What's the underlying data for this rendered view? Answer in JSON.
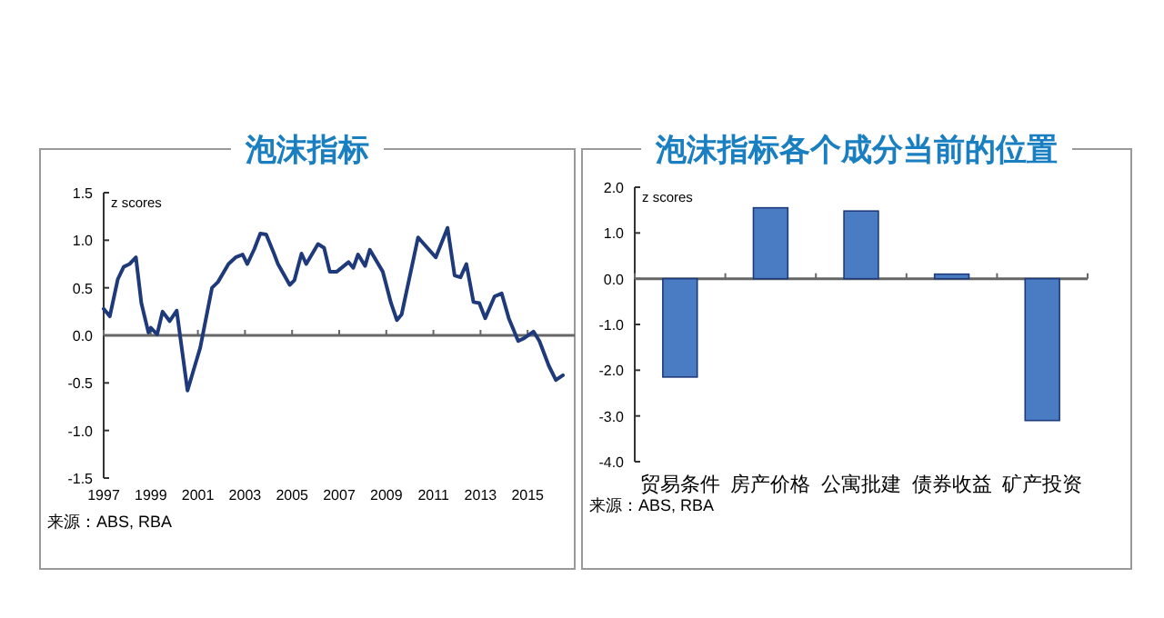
{
  "chart_data": [
    {
      "type": "line",
      "title": "泡沫指标",
      "ylabel": "z scores",
      "annotations": [
        "来源：ABS, RBA"
      ],
      "x": [
        1997.0,
        1997.26,
        1997.6,
        1997.85,
        1998.1,
        1998.37,
        1998.6,
        1998.9,
        1999.0,
        1999.27,
        1999.5,
        1999.8,
        2000.1,
        2000.56,
        2000.87,
        2001.1,
        2001.6,
        2001.85,
        2002.3,
        2002.6,
        2002.9,
        2003.1,
        2003.4,
        2003.65,
        2003.9,
        2004.2,
        2004.4,
        2004.9,
        2005.1,
        2005.4,
        2005.6,
        2006.1,
        2006.36,
        2006.6,
        2006.9,
        2007.4,
        2007.6,
        2007.8,
        2008.1,
        2008.3,
        2008.85,
        2009.2,
        2009.45,
        2009.65,
        2010.35,
        2011.1,
        2011.6,
        2011.9,
        2012.15,
        2012.4,
        2012.7,
        2012.95,
        2013.2,
        2013.6,
        2013.9,
        2014.2,
        2014.6,
        2014.85,
        2015.25,
        2015.5,
        2015.9,
        2016.2,
        2016.5
      ],
      "series": [
        {
          "color": "#1f3a7a",
          "values": [
            0.28,
            0.2,
            0.59,
            0.72,
            0.75,
            0.82,
            0.34,
            0.03,
            0.08,
            0.01,
            0.25,
            0.15,
            0.26,
            -0.58,
            -0.32,
            -0.13,
            0.5,
            0.56,
            0.75,
            0.82,
            0.85,
            0.75,
            0.91,
            1.07,
            1.06,
            0.88,
            0.75,
            0.53,
            0.58,
            0.86,
            0.75,
            0.96,
            0.92,
            0.67,
            0.67,
            0.77,
            0.71,
            0.85,
            0.73,
            0.9,
            0.67,
            0.34,
            0.16,
            0.22,
            1.03,
            0.82,
            1.13,
            0.63,
            0.61,
            0.75,
            0.35,
            0.34,
            0.18,
            0.41,
            0.44,
            0.18,
            -0.06,
            -0.03,
            0.04,
            -0.06,
            -0.32,
            -0.47,
            -0.42
          ]
        }
      ],
      "xlim": [
        1997,
        2017
      ],
      "xticks": [
        1997,
        1999,
        2001,
        2003,
        2005,
        2007,
        2009,
        2011,
        2013,
        2015
      ],
      "ylim": [
        -1.5,
        1.5
      ],
      "yticks": [
        {
          "value": -1.5,
          "label": "-1.5"
        },
        {
          "value": -1,
          "label": "-1.0"
        },
        {
          "value": -0.5,
          "label": "-0.5"
        },
        {
          "value": 0,
          "label": "0.0"
        },
        {
          "value": 0.5,
          "label": "0.5"
        },
        {
          "value": 1,
          "label": "1.0"
        },
        {
          "value": 1.5,
          "label": "1.5"
        }
      ],
      "marker": "none",
      "line_style": "solid"
    },
    {
      "type": "bar",
      "title": "泡沫指标各个成分当前的位置",
      "ylabel": "z scores",
      "annotations": [
        "来源：ABS, RBA"
      ],
      "categories": [
        "贸易条件",
        "房产价格",
        "公寓批建",
        "债券收益",
        "矿产投资"
      ],
      "series": [
        {
          "color": "#4a7cc4",
          "values": [
            -2.15,
            1.55,
            1.48,
            0.1,
            -3.1
          ]
        }
      ],
      "ylim": [
        -4,
        2
      ],
      "yticks": [
        {
          "value": -4,
          "label": "-4.0"
        },
        {
          "value": -3,
          "label": "-3.0"
        },
        {
          "value": -2,
          "label": "-2.0"
        },
        {
          "value": -1,
          "label": "-1.0"
        },
        {
          "value": 0,
          "label": "0.0"
        },
        {
          "value": 1,
          "label": "1.0"
        },
        {
          "value": 2,
          "label": "2.0"
        }
      ]
    }
  ]
}
